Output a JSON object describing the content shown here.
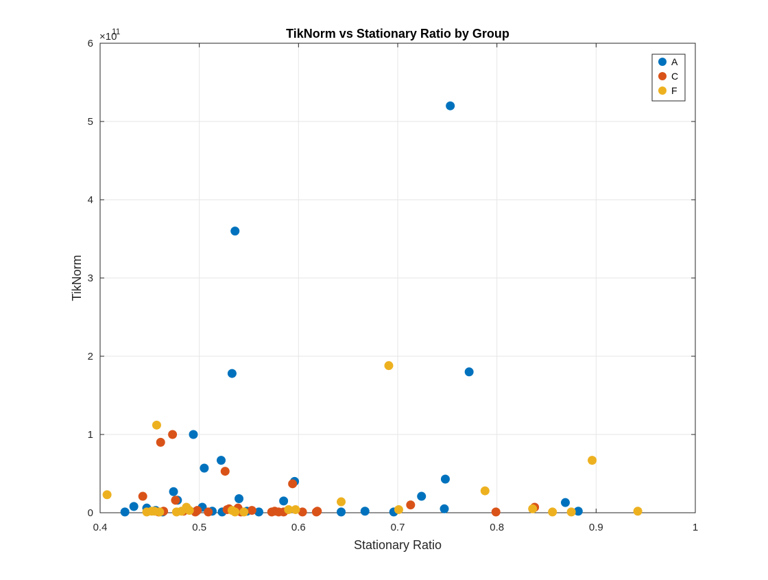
{
  "chart_data": {
    "type": "scatter",
    "title": "TikNorm vs Stationary Ratio by Group",
    "xlabel": "Stationary Ratio",
    "ylabel": "TikNorm",
    "xlim": [
      0.4,
      1.0
    ],
    "ylim": [
      0,
      6
    ],
    "y_exponent_label": "×10",
    "y_exponent_power": "11",
    "x_ticks": [
      "0.4",
      "0.5",
      "0.6",
      "0.7",
      "0.8",
      "0.9",
      "1"
    ],
    "y_ticks": [
      "0",
      "1",
      "2",
      "3",
      "4",
      "5",
      "6"
    ],
    "grid": true,
    "legend_position": "top-right",
    "series": [
      {
        "name": "A",
        "color": "#0072BD",
        "points": [
          [
            0.425,
            0.01
          ],
          [
            0.434,
            0.08
          ],
          [
            0.447,
            0.06
          ],
          [
            0.456,
            0.03
          ],
          [
            0.463,
            0.01
          ],
          [
            0.474,
            0.27
          ],
          [
            0.478,
            0.16
          ],
          [
            0.494,
            1.0
          ],
          [
            0.497,
            0.02
          ],
          [
            0.503,
            0.07
          ],
          [
            0.505,
            0.57
          ],
          [
            0.513,
            0.02
          ],
          [
            0.522,
            0.67
          ],
          [
            0.523,
            0.01
          ],
          [
            0.533,
            1.78
          ],
          [
            0.536,
            3.6
          ],
          [
            0.54,
            0.18
          ],
          [
            0.548,
            0.02
          ],
          [
            0.56,
            0.01
          ],
          [
            0.585,
            0.15
          ],
          [
            0.596,
            0.4
          ],
          [
            0.643,
            0.01
          ],
          [
            0.667,
            0.02
          ],
          [
            0.696,
            0.01
          ],
          [
            0.724,
            0.21
          ],
          [
            0.747,
            0.05
          ],
          [
            0.748,
            0.43
          ],
          [
            0.753,
            5.2
          ],
          [
            0.772,
            1.8
          ],
          [
            0.869,
            0.13
          ],
          [
            0.882,
            0.02
          ]
        ]
      },
      {
        "name": "C",
        "color": "#D95319",
        "points": [
          [
            0.443,
            0.21
          ],
          [
            0.459,
            0.01
          ],
          [
            0.461,
            0.9
          ],
          [
            0.464,
            0.02
          ],
          [
            0.473,
            1.0
          ],
          [
            0.476,
            0.16
          ],
          [
            0.484,
            0.02
          ],
          [
            0.496,
            0.01
          ],
          [
            0.498,
            0.03
          ],
          [
            0.509,
            0.01
          ],
          [
            0.526,
            0.53
          ],
          [
            0.528,
            0.04
          ],
          [
            0.53,
            0.05
          ],
          [
            0.539,
            0.06
          ],
          [
            0.542,
            0.01
          ],
          [
            0.553,
            0.03
          ],
          [
            0.573,
            0.01
          ],
          [
            0.576,
            0.02
          ],
          [
            0.58,
            0.01
          ],
          [
            0.585,
            0.01
          ],
          [
            0.594,
            0.37
          ],
          [
            0.604,
            0.01
          ],
          [
            0.618,
            0.01
          ],
          [
            0.619,
            0.02
          ],
          [
            0.713,
            0.1
          ],
          [
            0.799,
            0.01
          ],
          [
            0.838,
            0.07
          ]
        ]
      },
      {
        "name": "F",
        "color": "#EDB120",
        "points": [
          [
            0.407,
            0.23
          ],
          [
            0.447,
            0.01
          ],
          [
            0.452,
            0.02
          ],
          [
            0.455,
            0.02
          ],
          [
            0.457,
            1.12
          ],
          [
            0.46,
            0.01
          ],
          [
            0.477,
            0.01
          ],
          [
            0.482,
            0.02
          ],
          [
            0.487,
            0.07
          ],
          [
            0.49,
            0.03
          ],
          [
            0.533,
            0.03
          ],
          [
            0.536,
            0.01
          ],
          [
            0.545,
            0.01
          ],
          [
            0.59,
            0.04
          ],
          [
            0.597,
            0.04
          ],
          [
            0.643,
            0.14
          ],
          [
            0.691,
            1.88
          ],
          [
            0.701,
            0.04
          ],
          [
            0.788,
            0.28
          ],
          [
            0.836,
            0.05
          ],
          [
            0.856,
            0.01
          ],
          [
            0.875,
            0.01
          ],
          [
            0.896,
            0.67
          ],
          [
            0.942,
            0.02
          ]
        ]
      }
    ]
  }
}
